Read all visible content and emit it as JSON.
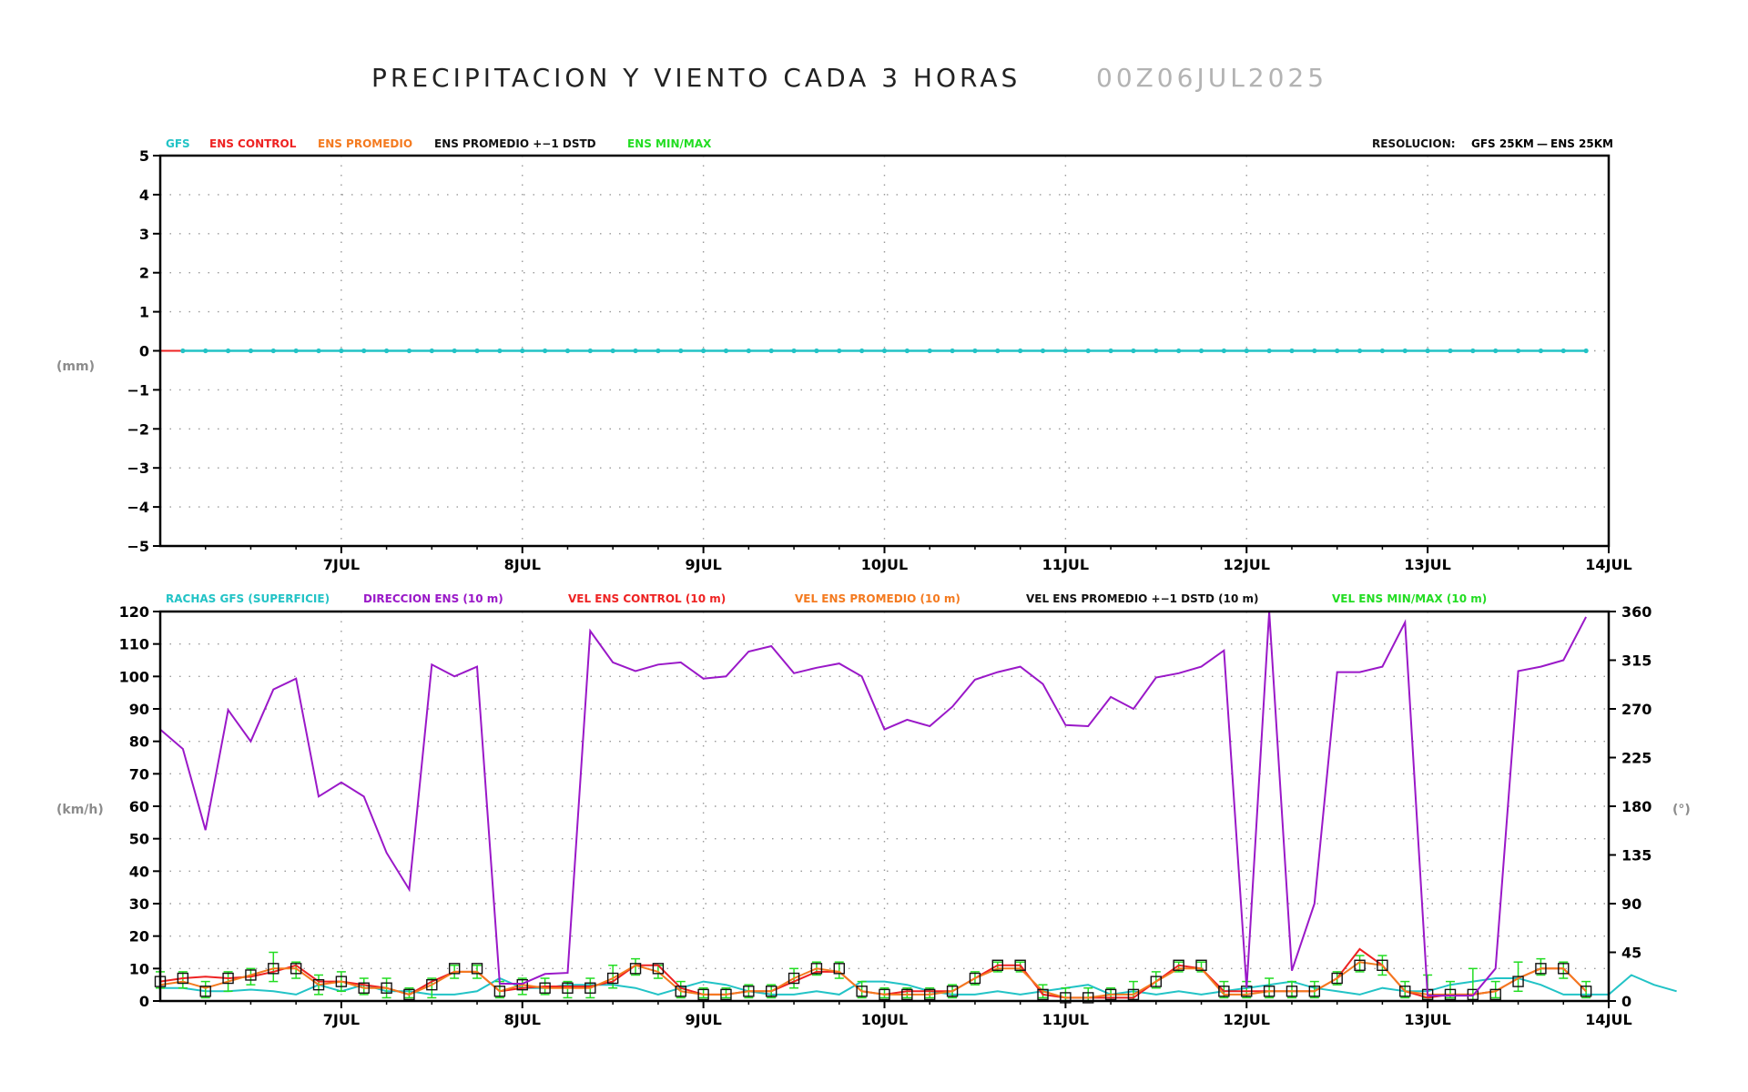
{
  "title": "PRECIPITACION Y VIENTO CADA 3 HORAS",
  "run_date": "00Z06JUL2025",
  "colors": {
    "gfs": "#22c3c6",
    "control": "#ee2222",
    "promedio": "#f47a1f",
    "dstd": "#111111",
    "minmax": "#22dd22",
    "direccion": "#9a18c8",
    "resolucion_gfs": "#22c3c6",
    "resolucion_ens": "#b3b3b3",
    "grid": "#9a9a9a"
  },
  "chart_data": [
    {
      "id": "precipitacion",
      "type": "line",
      "ylabel": "(mm)",
      "ylim": [
        -5,
        5
      ],
      "yticks": [
        "5",
        "4",
        "3",
        "2",
        "1",
        "0",
        "−1",
        "−2",
        "−3",
        "−4",
        "−5"
      ],
      "xticks": [
        "7JUL",
        "8JUL",
        "9JUL",
        "10JUL",
        "11JUL",
        "12JUL",
        "13JUL",
        "14JUL"
      ],
      "xlim_hours": [
        0,
        192
      ],
      "grid": true,
      "legend": [
        {
          "label": "GFS",
          "color": "#22c3c6"
        },
        {
          "label": "ENS CONTROL",
          "color": "#ee2222"
        },
        {
          "label": "ENS PROMEDIO",
          "color": "#f47a1f"
        },
        {
          "label": "ENS PROMEDIO +−1 DSTD",
          "color": "#111111"
        },
        {
          "label": "ENS MIN/MAX",
          "color": "#22dd22"
        }
      ],
      "resolution_label": "RESOLUCION:",
      "resolution_gfs": "GFS 25KM",
      "resolution_sep": "—",
      "resolution_ens": "ENS 25KM",
      "series": [
        {
          "name": "GFS",
          "step_hours": 3,
          "start_hours": 3,
          "value": 0,
          "count": 63
        },
        {
          "name": "ENS CONTROL",
          "step_hours": 3,
          "start_hours": 0,
          "value": 0,
          "count": 2
        }
      ]
    },
    {
      "id": "viento",
      "type": "line",
      "ylabel_left": "(km/h)",
      "ylabel_right": "(°)",
      "ylim": [
        0,
        120
      ],
      "ylim_right": [
        0,
        360
      ],
      "yticks": [
        "120",
        "110",
        "100",
        "90",
        "80",
        "70",
        "60",
        "50",
        "40",
        "30",
        "20",
        "10",
        "0"
      ],
      "yticks_right": [
        "360",
        "315",
        "270",
        "225",
        "180",
        "135",
        "90",
        "45",
        "0"
      ],
      "xticks": [
        "7JUL",
        "8JUL",
        "9JUL",
        "10JUL",
        "11JUL",
        "12JUL",
        "13JUL",
        "14JUL"
      ],
      "xlim_hours": [
        0,
        192
      ],
      "grid": true,
      "legend": [
        {
          "label": "RACHAS GFS (SUPERFICIE)",
          "color": "#22c3c6"
        },
        {
          "label": "DIRECCION ENS (10 m)",
          "color": "#9a18c8"
        },
        {
          "label": "VEL ENS CONTROL (10 m)",
          "color": "#ee2222"
        },
        {
          "label": "VEL ENS PROMEDIO (10 m)",
          "color": "#f47a1f"
        },
        {
          "label": "VEL ENS PROMEDIO +−1 DSTD (10 m)",
          "color": "#111111"
        },
        {
          "label": "VEL ENS MIN/MAX (10 m)",
          "color": "#22dd22"
        }
      ],
      "series": [
        {
          "name": "DIRECCION ENS (10 m)",
          "axis": "right",
          "step_hours": 3,
          "start_hours": 0,
          "values": [
            251,
            233,
            158,
            269,
            240,
            288,
            298,
            189,
            202,
            189,
            137,
            103,
            311,
            300,
            309,
            16,
            16,
            25,
            26,
            342,
            313,
            305,
            311,
            313,
            298,
            300,
            323,
            328,
            303,
            308,
            312,
            300,
            251,
            260,
            254,
            272,
            297,
            304,
            309,
            293,
            255,
            254,
            281,
            270,
            299,
            303,
            309,
            324,
            12,
            360,
            28,
            90,
            304,
            304,
            309,
            350,
            5,
            5,
            5,
            30,
            305,
            309,
            315,
            355
          ]
        },
        {
          "name": "RACHAS GFS (SUPERFICIE)",
          "axis": "left",
          "step_hours": 3,
          "start_hours": 0,
          "values": [
            4,
            4,
            3,
            3,
            3.5,
            3,
            2,
            5,
            3,
            5,
            3,
            3,
            2,
            2,
            3,
            7,
            4,
            4,
            5,
            5,
            5,
            4,
            2,
            4,
            6,
            5,
            3,
            2,
            2,
            3,
            2,
            6,
            6,
            5,
            3,
            2,
            2,
            3,
            2,
            3,
            4,
            5,
            2,
            3,
            2,
            3,
            2,
            3,
            4,
            5,
            6,
            4,
            3,
            2,
            4,
            3,
            3,
            5,
            6,
            7,
            7,
            5,
            2,
            2,
            2,
            8,
            5,
            3
          ]
        },
        {
          "name": "VEL ENS CONTROL (10 m)",
          "axis": "left",
          "step_hours": 3,
          "start_hours": 0,
          "values": [
            6,
            7,
            7.5,
            7,
            7.5,
            9,
            11,
            6,
            6,
            5,
            4,
            2,
            6,
            9,
            9,
            3,
            4,
            4.5,
            4.5,
            4.5,
            6,
            11,
            11,
            4,
            2,
            2,
            3,
            3,
            6,
            9,
            9,
            3,
            2,
            3,
            3,
            3,
            7,
            11,
            11,
            2,
            1,
            1,
            1,
            1,
            6,
            11,
            10,
            3,
            3,
            3,
            3,
            3,
            7,
            16,
            11,
            3,
            1,
            2,
            2,
            3,
            7,
            10,
            10,
            3
          ]
        },
        {
          "name": "VEL ENS PROMEDIO (10 m)",
          "axis": "left",
          "step_hours": 3,
          "start_hours": 0,
          "values": [
            5,
            6,
            4,
            6,
            8,
            10,
            10,
            5,
            6,
            4,
            4,
            2,
            5,
            9,
            9,
            3,
            5,
            4,
            4,
            4,
            7,
            11,
            9,
            3,
            2,
            2,
            3,
            3,
            7,
            10,
            9,
            3,
            2,
            2,
            2,
            3,
            7,
            10,
            10,
            3,
            1,
            1,
            2,
            2,
            6,
            10,
            10,
            2,
            2,
            3,
            3,
            3,
            7,
            12,
            11,
            3,
            2,
            2,
            2,
            3,
            7,
            10,
            10,
            3
          ]
        },
        {
          "name": "VEL ENS PROMEDIO +−1 DSTD (10 m)",
          "axis": "left",
          "step_hours": 3,
          "start_hours": 0,
          "values": [
            6,
            7,
            3,
            7,
            8,
            10,
            10,
            5,
            6,
            4,
            4,
            2,
            5,
            10,
            10,
            3,
            5,
            4,
            4,
            4,
            7,
            10,
            10,
            3,
            2,
            2,
            3,
            3,
            7,
            10,
            10,
            3,
            2,
            2,
            2,
            3,
            7,
            11,
            11,
            2,
            1,
            1,
            2,
            2,
            6,
            11,
            11,
            3,
            3,
            3,
            3,
            3,
            7,
            11,
            11,
            3,
            2,
            2,
            2,
            2,
            6,
            10,
            10,
            3
          ]
        },
        {
          "name": "VEL ENS MIN/MAX (10 m)",
          "axis": "left",
          "step_hours": 3,
          "start_hours": 0,
          "values_min": [
            4,
            4,
            1,
            3,
            5,
            6,
            7,
            2,
            3,
            2,
            1,
            1,
            1,
            7,
            7,
            1,
            2,
            2,
            1,
            1,
            4,
            8,
            7,
            1,
            1,
            1,
            1,
            1,
            4,
            8,
            7,
            1,
            1,
            1,
            1,
            1,
            5,
            9,
            9,
            1,
            0,
            0,
            0,
            0,
            4,
            9,
            9,
            1,
            1,
            1,
            1,
            1,
            5,
            9,
            8,
            1,
            1,
            1,
            0,
            1,
            3,
            8,
            7,
            1
          ],
          "values_max": [
            9,
            9,
            6,
            9,
            10,
            15,
            12,
            8,
            9,
            7,
            7,
            4,
            7,
            11,
            11,
            6,
            7,
            7,
            6,
            7,
            11,
            13,
            11,
            6,
            4,
            4,
            5,
            5,
            10,
            12,
            12,
            6,
            4,
            4,
            4,
            5,
            9,
            12,
            12,
            5,
            4,
            4,
            4,
            6,
            9,
            12,
            12,
            6,
            6,
            7,
            6,
            6,
            9,
            14,
            14,
            6,
            8,
            6,
            10,
            6,
            12,
            13,
            12,
            6
          ]
        }
      ]
    }
  ]
}
